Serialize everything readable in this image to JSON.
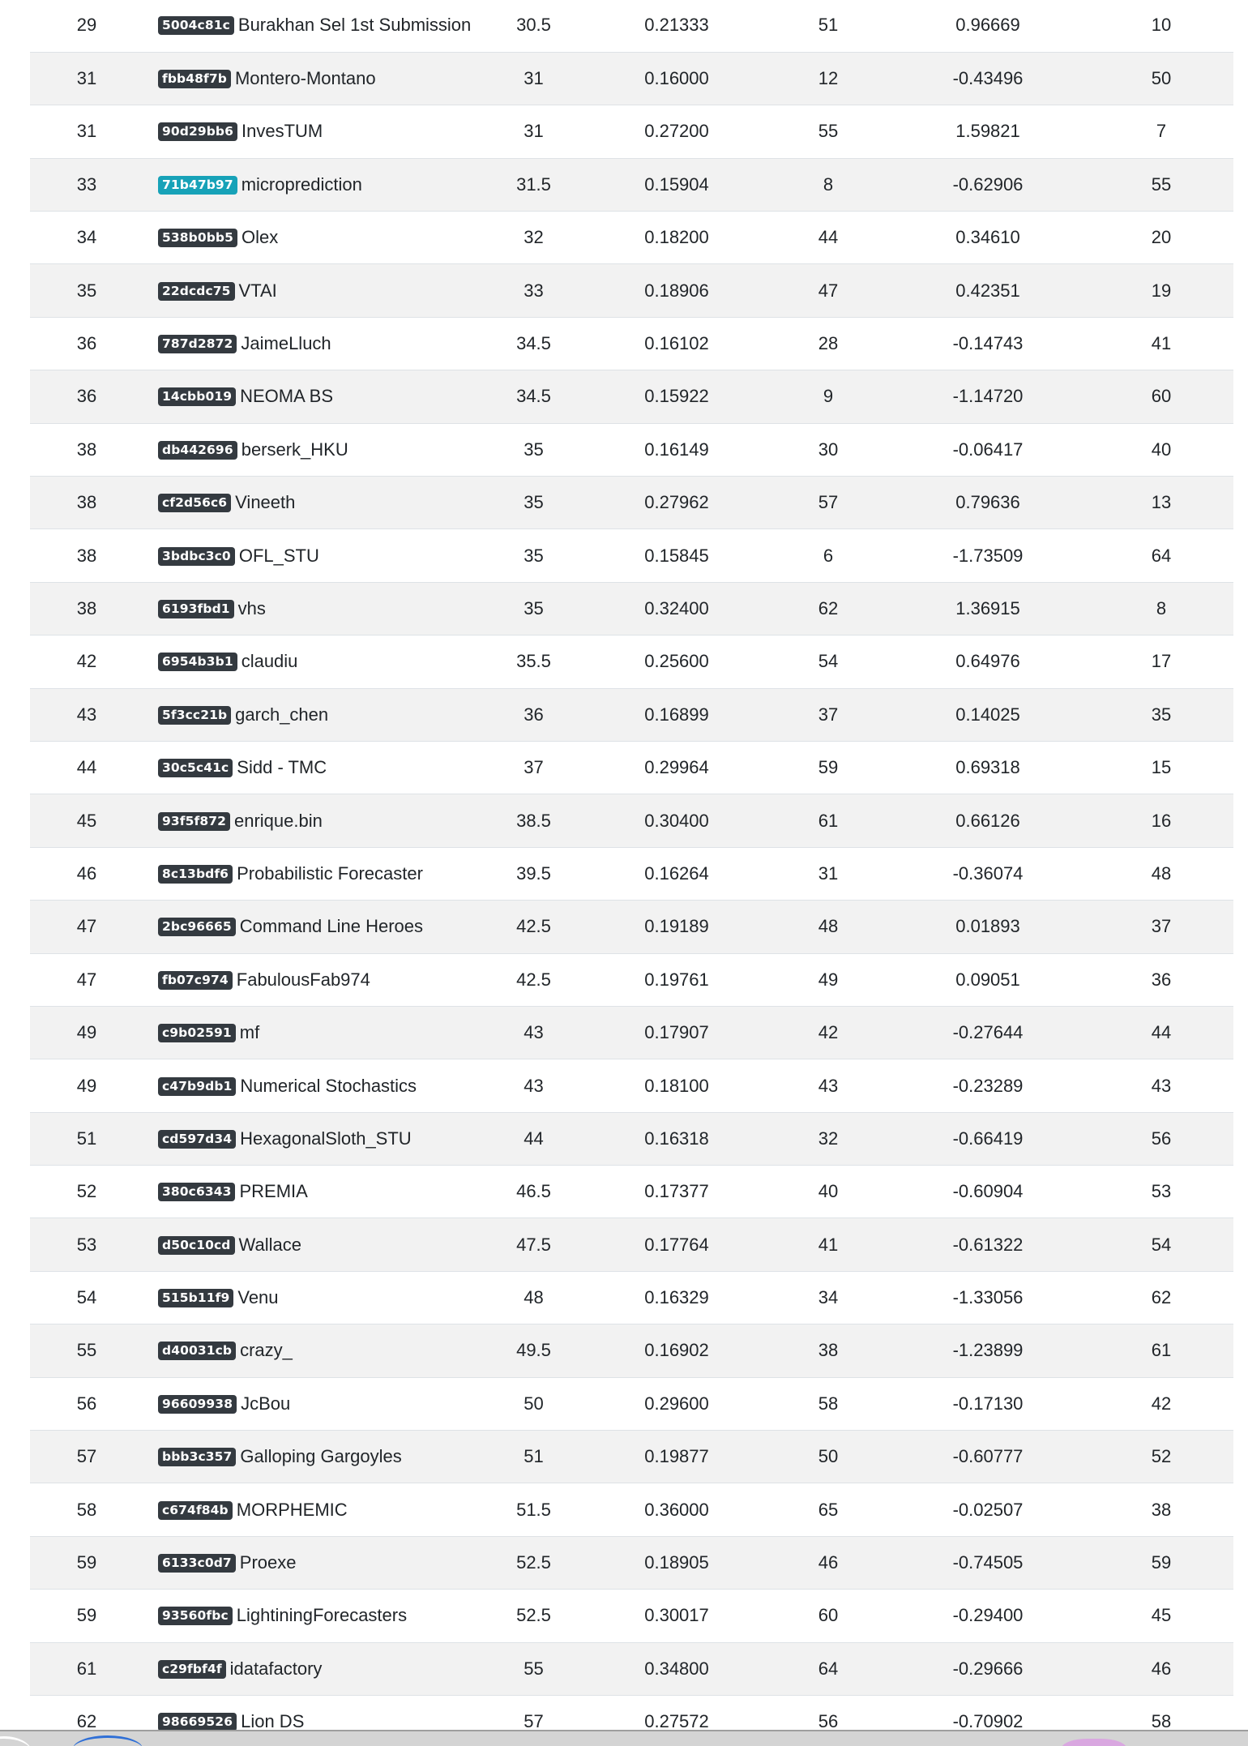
{
  "leaderboard": {
    "rows": [
      {
        "rank": "29",
        "id": "5004c81c",
        "name": "Burakhan Sel 1st Submission",
        "score": "30.5",
        "crps": "0.21333",
        "crps_rank": "51",
        "ir": "0.96669",
        "ir_rank": "10"
      },
      {
        "rank": "31",
        "id": "fbb48f7b",
        "name": "Montero-Montano",
        "score": "31",
        "crps": "0.16000",
        "crps_rank": "12",
        "ir": "-0.43496",
        "ir_rank": "50"
      },
      {
        "rank": "31",
        "id": "90d29bb6",
        "name": "InvesTUM",
        "score": "31",
        "crps": "0.27200",
        "crps_rank": "55",
        "ir": "1.59821",
        "ir_rank": "7"
      },
      {
        "rank": "33",
        "id": "71b47b97",
        "name": "microprediction",
        "score": "31.5",
        "crps": "0.15904",
        "crps_rank": "8",
        "ir": "-0.62906",
        "ir_rank": "55",
        "highlight": true
      },
      {
        "rank": "34",
        "id": "538b0bb5",
        "name": "Olex",
        "score": "32",
        "crps": "0.18200",
        "crps_rank": "44",
        "ir": "0.34610",
        "ir_rank": "20"
      },
      {
        "rank": "35",
        "id": "22dcdc75",
        "name": "VTAI",
        "score": "33",
        "crps": "0.18906",
        "crps_rank": "47",
        "ir": "0.42351",
        "ir_rank": "19"
      },
      {
        "rank": "36",
        "id": "787d2872",
        "name": "JaimeLluch",
        "score": "34.5",
        "crps": "0.16102",
        "crps_rank": "28",
        "ir": "-0.14743",
        "ir_rank": "41"
      },
      {
        "rank": "36",
        "id": "14cbb019",
        "name": "NEOMA BS",
        "score": "34.5",
        "crps": "0.15922",
        "crps_rank": "9",
        "ir": "-1.14720",
        "ir_rank": "60"
      },
      {
        "rank": "38",
        "id": "db442696",
        "name": "berserk_HKU",
        "score": "35",
        "crps": "0.16149",
        "crps_rank": "30",
        "ir": "-0.06417",
        "ir_rank": "40"
      },
      {
        "rank": "38",
        "id": "cf2d56c6",
        "name": "Vineeth",
        "score": "35",
        "crps": "0.27962",
        "crps_rank": "57",
        "ir": "0.79636",
        "ir_rank": "13"
      },
      {
        "rank": "38",
        "id": "3bdbc3c0",
        "name": "OFL_STU",
        "score": "35",
        "crps": "0.15845",
        "crps_rank": "6",
        "ir": "-1.73509",
        "ir_rank": "64"
      },
      {
        "rank": "38",
        "id": "6193fbd1",
        "name": "vhs",
        "score": "35",
        "crps": "0.32400",
        "crps_rank": "62",
        "ir": "1.36915",
        "ir_rank": "8"
      },
      {
        "rank": "42",
        "id": "6954b3b1",
        "name": "claudiu",
        "score": "35.5",
        "crps": "0.25600",
        "crps_rank": "54",
        "ir": "0.64976",
        "ir_rank": "17"
      },
      {
        "rank": "43",
        "id": "5f3cc21b",
        "name": "garch_chen",
        "score": "36",
        "crps": "0.16899",
        "crps_rank": "37",
        "ir": "0.14025",
        "ir_rank": "35"
      },
      {
        "rank": "44",
        "id": "30c5c41c",
        "name": "Sidd - TMC",
        "score": "37",
        "crps": "0.29964",
        "crps_rank": "59",
        "ir": "0.69318",
        "ir_rank": "15"
      },
      {
        "rank": "45",
        "id": "93f5f872",
        "name": "enrique.bin",
        "score": "38.5",
        "crps": "0.30400",
        "crps_rank": "61",
        "ir": "0.66126",
        "ir_rank": "16"
      },
      {
        "rank": "46",
        "id": "8c13bdf6",
        "name": "Probabilistic Forecaster",
        "score": "39.5",
        "crps": "0.16264",
        "crps_rank": "31",
        "ir": "-0.36074",
        "ir_rank": "48"
      },
      {
        "rank": "47",
        "id": "2bc96665",
        "name": "Command Line Heroes",
        "score": "42.5",
        "crps": "0.19189",
        "crps_rank": "48",
        "ir": "0.01893",
        "ir_rank": "37"
      },
      {
        "rank": "47",
        "id": "fb07c974",
        "name": "FabulousFab974",
        "score": "42.5",
        "crps": "0.19761",
        "crps_rank": "49",
        "ir": "0.09051",
        "ir_rank": "36"
      },
      {
        "rank": "49",
        "id": "c9b02591",
        "name": "mf",
        "score": "43",
        "crps": "0.17907",
        "crps_rank": "42",
        "ir": "-0.27644",
        "ir_rank": "44"
      },
      {
        "rank": "49",
        "id": "c47b9db1",
        "name": "Numerical Stochastics",
        "score": "43",
        "crps": "0.18100",
        "crps_rank": "43",
        "ir": "-0.23289",
        "ir_rank": "43"
      },
      {
        "rank": "51",
        "id": "cd597d34",
        "name": "HexagonalSloth_STU",
        "score": "44",
        "crps": "0.16318",
        "crps_rank": "32",
        "ir": "-0.66419",
        "ir_rank": "56"
      },
      {
        "rank": "52",
        "id": "380c6343",
        "name": "PREMIA",
        "score": "46.5",
        "crps": "0.17377",
        "crps_rank": "40",
        "ir": "-0.60904",
        "ir_rank": "53"
      },
      {
        "rank": "53",
        "id": "d50c10cd",
        "name": "Wallace",
        "score": "47.5",
        "crps": "0.17764",
        "crps_rank": "41",
        "ir": "-0.61322",
        "ir_rank": "54"
      },
      {
        "rank": "54",
        "id": "515b11f9",
        "name": "Venu",
        "score": "48",
        "crps": "0.16329",
        "crps_rank": "34",
        "ir": "-1.33056",
        "ir_rank": "62"
      },
      {
        "rank": "55",
        "id": "d40031cb",
        "name": "crazy_",
        "score": "49.5",
        "crps": "0.16902",
        "crps_rank": "38",
        "ir": "-1.23899",
        "ir_rank": "61"
      },
      {
        "rank": "56",
        "id": "96609938",
        "name": "JcBou",
        "score": "50",
        "crps": "0.29600",
        "crps_rank": "58",
        "ir": "-0.17130",
        "ir_rank": "42"
      },
      {
        "rank": "57",
        "id": "bbb3c357",
        "name": "Galloping Gargoyles",
        "score": "51",
        "crps": "0.19877",
        "crps_rank": "50",
        "ir": "-0.60777",
        "ir_rank": "52"
      },
      {
        "rank": "58",
        "id": "c674f84b",
        "name": "MORPHEMIC",
        "score": "51.5",
        "crps": "0.36000",
        "crps_rank": "65",
        "ir": "-0.02507",
        "ir_rank": "38"
      },
      {
        "rank": "59",
        "id": "6133c0d7",
        "name": "Proexe",
        "score": "52.5",
        "crps": "0.18905",
        "crps_rank": "46",
        "ir": "-0.74505",
        "ir_rank": "59"
      },
      {
        "rank": "59",
        "id": "93560fbc",
        "name": "LightiningForecasters",
        "score": "52.5",
        "crps": "0.30017",
        "crps_rank": "60",
        "ir": "-0.29400",
        "ir_rank": "45"
      },
      {
        "rank": "61",
        "id": "c29fbf4f",
        "name": "idatafactory",
        "score": "55",
        "crps": "0.34800",
        "crps_rank": "64",
        "ir": "-0.29666",
        "ir_rank": "46"
      },
      {
        "rank": "62",
        "id": "98669526",
        "name": "Lion DS",
        "score": "57",
        "crps": "0.27572",
        "crps_rank": "56",
        "ir": "-0.70902",
        "ir_rank": "58"
      }
    ]
  },
  "colors": {
    "badge_default": "#343a40",
    "badge_highlight": "#17a2b8",
    "stripe": "#f2f2f2",
    "text": "#212529"
  }
}
